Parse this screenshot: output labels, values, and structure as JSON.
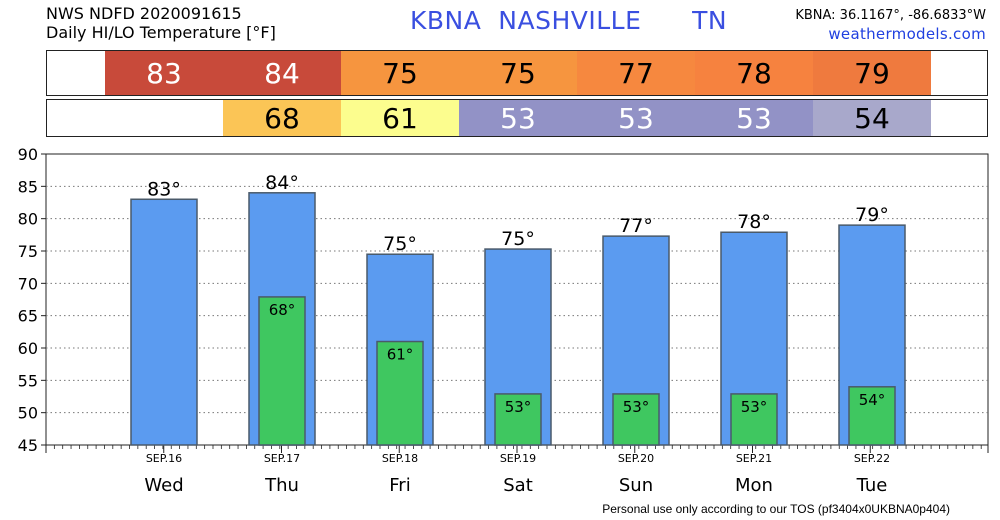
{
  "header": {
    "source_line": "NWS NDFD 2020091615",
    "chart_title": "Daily HI/LO Temperature [°F]",
    "station_code": "KBNA",
    "station_name": "NASHVILLE",
    "state": "TN",
    "coords": "KBNA: 36.1167°, -86.6833°W",
    "website": "weathermodels.com"
  },
  "strip_colors": {
    "hi": [
      "#c84a3a",
      "#c84a3a",
      "#f6953f",
      "#f6953f",
      "#f6883f",
      "#f6823f",
      "#ef7a3e"
    ],
    "lo": [
      null,
      "#fbc556",
      "#fcfd8e",
      "#9292c6",
      "#9292c6",
      "#9292c6",
      "#a8a8cb"
    ],
    "hi_text": [
      "#ffffff",
      "#ffffff",
      "#000000",
      "#000000",
      "#000000",
      "#000000",
      "#000000"
    ],
    "lo_text": [
      "#000000",
      "#000000",
      "#000000",
      "#ffffff",
      "#ffffff",
      "#ffffff",
      "#000000"
    ]
  },
  "chart_data": {
    "type": "bar",
    "categories": [
      "SEP.16",
      "SEP.17",
      "SEP.18",
      "SEP.19",
      "SEP.20",
      "SEP.21",
      "SEP.22"
    ],
    "day_labels": [
      "Wed",
      "Thu",
      "Fri",
      "Sat",
      "Sun",
      "Mon",
      "Tue"
    ],
    "series": [
      {
        "values": [
          83,
          84,
          75,
          75,
          77,
          78,
          79
        ],
        "color": "#5b9bf0",
        "bar_top_values": [
          83,
          84,
          74.5,
          75.3,
          77.3,
          77.9,
          79.0
        ]
      },
      {
        "values": [
          null,
          68,
          61,
          53,
          53,
          53,
          54
        ],
        "color": "#3fc760",
        "bar_top_values": [
          null,
          67.9,
          61.0,
          52.9,
          52.9,
          52.9,
          54.0
        ]
      }
    ],
    "hi_labels": [
      "83°",
      "84°",
      "75°",
      "75°",
      "77°",
      "78°",
      "79°"
    ],
    "lo_labels": [
      "",
      "68°",
      "61°",
      "53°",
      "53°",
      "53°",
      "54°"
    ],
    "ylim": [
      45,
      90
    ],
    "yticks": [
      45,
      50,
      55,
      60,
      65,
      70,
      75,
      80,
      85,
      90
    ],
    "grid": true,
    "legend": "none"
  },
  "footer": "Personal use only according to our TOS (pf3404x0UKBNA0p404)"
}
